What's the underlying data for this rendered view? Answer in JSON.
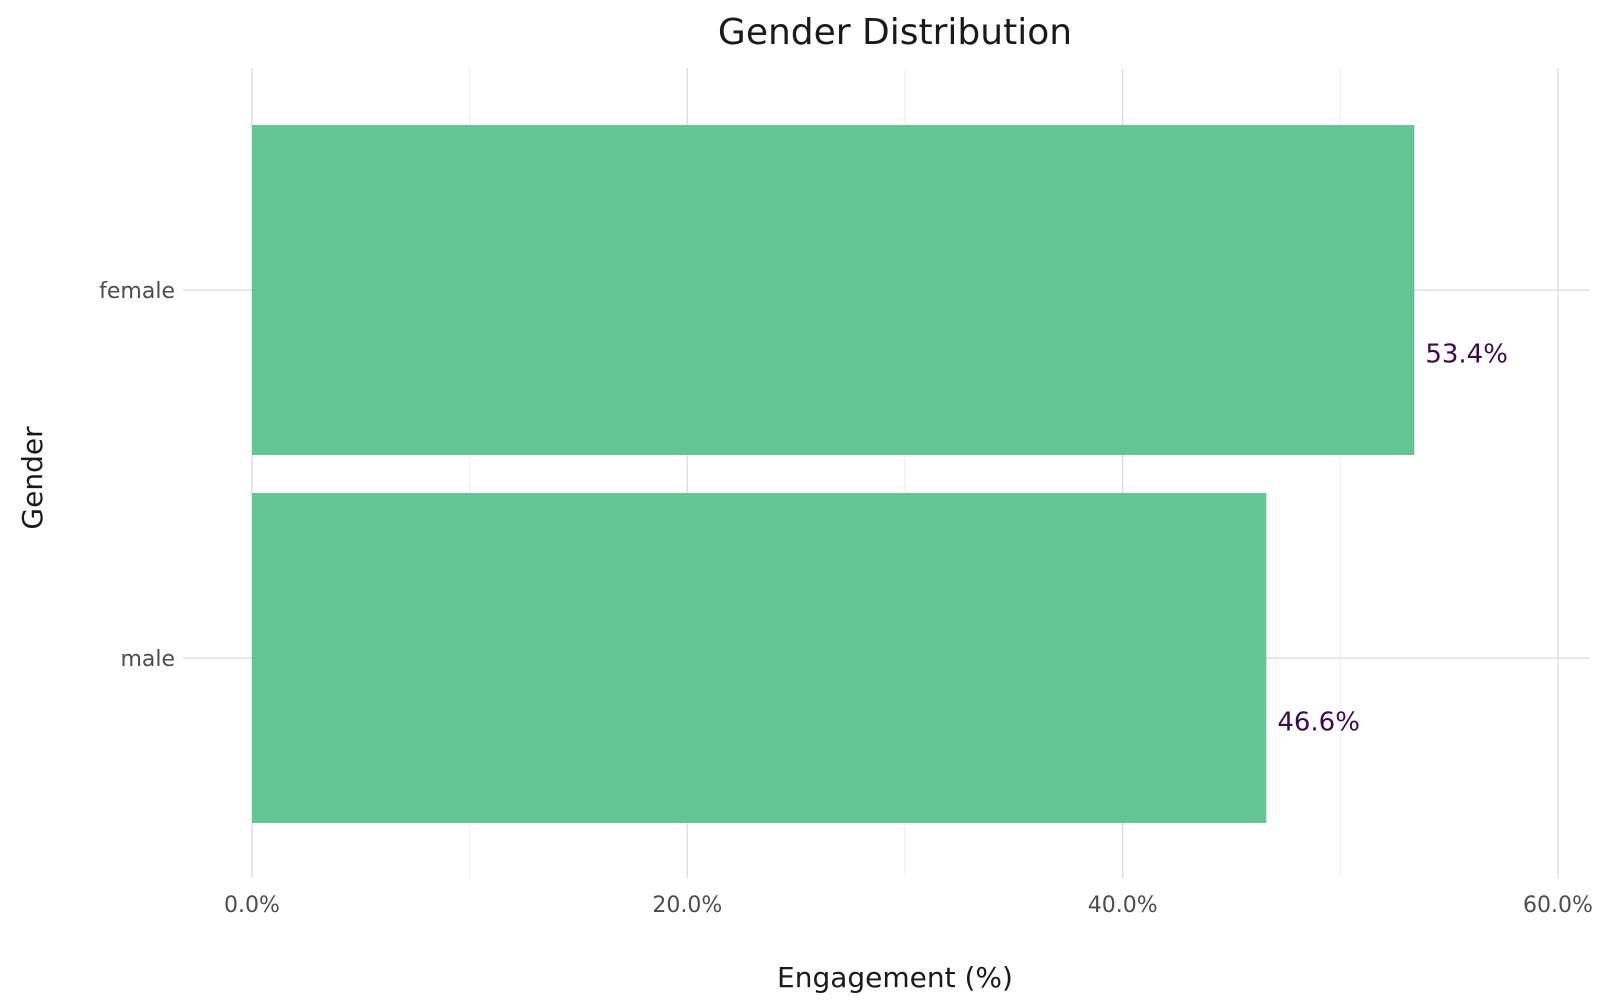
{
  "chart_data": {
    "type": "bar",
    "orientation": "horizontal",
    "title": "Gender Distribution",
    "xlabel": "Engagement (%)",
    "ylabel": "Gender",
    "categories": [
      "female",
      "male"
    ],
    "values": [
      53.4,
      46.6
    ],
    "data_labels": [
      "53.4%",
      "46.6%"
    ],
    "xlim": [
      0,
      60
    ],
    "x_ticks": [
      0,
      20,
      40,
      60
    ],
    "x_tick_labels": [
      "0.0%",
      "20.0%",
      "40.0%",
      "60.0%"
    ],
    "grid": true,
    "legend": "none",
    "bar_color": "#5ec592",
    "label_color": "#3d0a4f"
  }
}
